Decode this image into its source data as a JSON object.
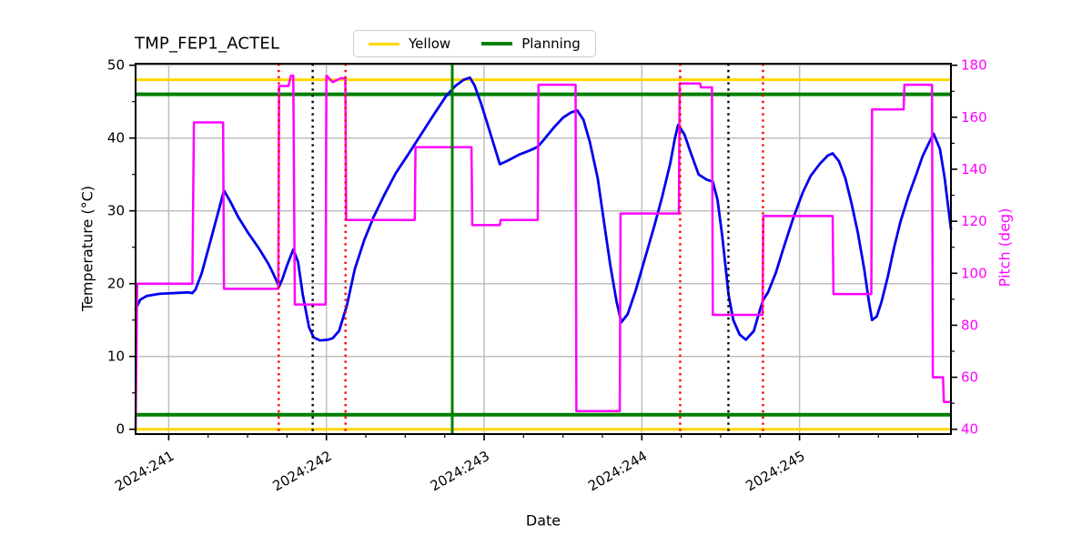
{
  "title": "TMP_FEP1_ACTEL",
  "legend": {
    "entries": [
      {
        "label": "Yellow",
        "color": "#FFD700"
      },
      {
        "label": "Planning",
        "color": "#008000"
      }
    ]
  },
  "chart_data": {
    "type": "line",
    "title": "TMP_FEP1_ACTEL",
    "xlabel": "Date",
    "ylabel_left": "Temperature (°C)",
    "ylabel_right": "Pitch (deg)",
    "right_axis_color": "#ff00ff",
    "grid": true,
    "xlim": [
      240.79,
      245.96
    ],
    "ylim_left": [
      -0.66,
      50.21
    ],
    "ylim_right": [
      38.15,
      180.59
    ],
    "x_ticks": [
      241,
      242,
      243,
      244,
      245
    ],
    "x_tick_labels": [
      "2024:241",
      "2024:242",
      "2024:243",
      "2024:244",
      "2024:245"
    ],
    "y_ticks_left": [
      0,
      10,
      20,
      30,
      40,
      50
    ],
    "y_ticks_right": [
      40,
      60,
      80,
      100,
      120,
      140,
      160,
      180
    ],
    "series": [
      {
        "name": "temperature",
        "axis": "left",
        "color": "#0000ee",
        "points": [
          [
            240.79,
            16.5
          ],
          [
            240.82,
            17.8
          ],
          [
            240.86,
            18.3
          ],
          [
            240.94,
            18.6
          ],
          [
            241.03,
            18.7
          ],
          [
            241.12,
            18.8
          ],
          [
            241.15,
            18.7
          ],
          [
            241.17,
            19.2
          ],
          [
            241.21,
            21.5
          ],
          [
            241.26,
            25.5
          ],
          [
            241.31,
            29.5
          ],
          [
            241.35,
            32.8
          ],
          [
            241.39,
            31.3
          ],
          [
            241.44,
            29.2
          ],
          [
            241.5,
            27.1
          ],
          [
            241.57,
            24.9
          ],
          [
            241.63,
            22.8
          ],
          [
            241.66,
            21.5
          ],
          [
            241.7,
            19.6
          ],
          [
            241.72,
            20.6
          ],
          [
            241.75,
            22.5
          ],
          [
            241.79,
            24.7
          ],
          [
            241.82,
            23.0
          ],
          [
            241.85,
            18.5
          ],
          [
            241.89,
            14.0
          ],
          [
            241.92,
            12.6
          ],
          [
            241.96,
            12.2
          ],
          [
            242.01,
            12.3
          ],
          [
            242.04,
            12.5
          ],
          [
            242.08,
            13.5
          ],
          [
            242.13,
            17.0
          ],
          [
            242.18,
            22.0
          ],
          [
            242.24,
            26.0
          ],
          [
            242.3,
            29.2
          ],
          [
            242.37,
            32.3
          ],
          [
            242.44,
            35.2
          ],
          [
            242.52,
            37.8
          ],
          [
            242.6,
            40.5
          ],
          [
            242.68,
            43.2
          ],
          [
            242.76,
            45.8
          ],
          [
            242.82,
            47.2
          ],
          [
            242.87,
            48.0
          ],
          [
            242.91,
            48.3
          ],
          [
            242.94,
            47.2
          ],
          [
            242.98,
            44.8
          ],
          [
            243.02,
            42.0
          ],
          [
            243.06,
            39.2
          ],
          [
            243.1,
            36.4
          ],
          [
            243.15,
            36.9
          ],
          [
            243.22,
            37.7
          ],
          [
            243.29,
            38.3
          ],
          [
            243.34,
            38.8
          ],
          [
            243.38,
            39.8
          ],
          [
            243.44,
            41.4
          ],
          [
            243.5,
            42.8
          ],
          [
            243.55,
            43.5
          ],
          [
            243.59,
            43.8
          ],
          [
            243.63,
            42.5
          ],
          [
            243.67,
            39.5
          ],
          [
            243.72,
            34.5
          ],
          [
            243.76,
            28.5
          ],
          [
            243.8,
            22.5
          ],
          [
            243.84,
            17.5
          ],
          [
            243.87,
            14.7
          ],
          [
            243.91,
            15.8
          ],
          [
            243.96,
            19.0
          ],
          [
            244.02,
            23.5
          ],
          [
            244.08,
            28.0
          ],
          [
            244.13,
            32.0
          ],
          [
            244.18,
            36.5
          ],
          [
            244.21,
            40.0
          ],
          [
            244.23,
            41.8
          ],
          [
            244.27,
            40.5
          ],
          [
            244.31,
            38.0
          ],
          [
            244.36,
            35.0
          ],
          [
            244.41,
            34.3
          ],
          [
            244.45,
            34.0
          ],
          [
            244.48,
            31.5
          ],
          [
            244.51,
            26.5
          ],
          [
            244.55,
            18.5
          ],
          [
            244.58,
            15.0
          ],
          [
            244.62,
            13.0
          ],
          [
            244.66,
            12.3
          ],
          [
            244.71,
            13.5
          ],
          [
            244.75,
            16.5
          ],
          [
            244.77,
            17.8
          ],
          [
            244.8,
            18.8
          ],
          [
            244.85,
            21.5
          ],
          [
            244.9,
            25.0
          ],
          [
            244.96,
            29.0
          ],
          [
            245.02,
            32.5
          ],
          [
            245.07,
            34.8
          ],
          [
            245.13,
            36.5
          ],
          [
            245.18,
            37.6
          ],
          [
            245.21,
            37.9
          ],
          [
            245.25,
            36.8
          ],
          [
            245.29,
            34.5
          ],
          [
            245.33,
            31.0
          ],
          [
            245.37,
            27.0
          ],
          [
            245.41,
            22.0
          ],
          [
            245.44,
            17.5
          ],
          [
            245.46,
            15.0
          ],
          [
            245.49,
            15.5
          ],
          [
            245.52,
            17.5
          ],
          [
            245.56,
            21.0
          ],
          [
            245.6,
            25.0
          ],
          [
            245.64,
            28.5
          ],
          [
            245.69,
            32.0
          ],
          [
            245.74,
            35.0
          ],
          [
            245.78,
            37.5
          ],
          [
            245.82,
            39.3
          ],
          [
            245.85,
            40.6
          ],
          [
            245.89,
            38.5
          ],
          [
            245.92,
            34.5
          ],
          [
            245.94,
            31.0
          ],
          [
            245.96,
            27.5
          ]
        ]
      },
      {
        "name": "pitch",
        "axis": "right",
        "color": "#ff00ff",
        "points": [
          [
            240.79,
            40
          ],
          [
            240.8,
            96
          ],
          [
            241.15,
            96
          ],
          [
            241.16,
            158
          ],
          [
            241.345,
            158
          ],
          [
            241.35,
            94
          ],
          [
            241.695,
            94
          ],
          [
            241.7,
            172
          ],
          [
            241.76,
            172
          ],
          [
            241.775,
            176
          ],
          [
            241.79,
            176
          ],
          [
            241.8,
            88
          ],
          [
            241.995,
            88
          ],
          [
            242.0,
            176
          ],
          [
            242.04,
            173.5
          ],
          [
            242.09,
            175
          ],
          [
            242.12,
            175
          ],
          [
            242.125,
            120.5
          ],
          [
            242.56,
            120.5
          ],
          [
            242.565,
            148.5
          ],
          [
            242.92,
            148.5
          ],
          [
            242.925,
            118.5
          ],
          [
            243.1,
            118.5
          ],
          [
            243.105,
            120.5
          ],
          [
            243.34,
            120.5
          ],
          [
            243.345,
            172.5
          ],
          [
            243.58,
            172.5
          ],
          [
            243.585,
            47
          ],
          [
            243.86,
            47
          ],
          [
            243.865,
            123
          ],
          [
            244.235,
            123
          ],
          [
            244.24,
            173
          ],
          [
            244.37,
            173
          ],
          [
            244.375,
            171.5
          ],
          [
            244.445,
            171.5
          ],
          [
            244.45,
            84
          ],
          [
            244.765,
            84
          ],
          [
            244.77,
            122
          ],
          [
            245.21,
            122
          ],
          [
            245.215,
            92
          ],
          [
            245.455,
            92
          ],
          [
            245.46,
            163
          ],
          [
            245.66,
            163
          ],
          [
            245.665,
            172.5
          ],
          [
            245.84,
            172.5
          ],
          [
            245.845,
            60
          ],
          [
            245.91,
            60
          ],
          [
            245.915,
            50.5
          ],
          [
            245.96,
            50.5
          ]
        ]
      }
    ],
    "reference_lines": {
      "horizontal": [
        {
          "name": "yellow-high",
          "color": "#FFD700",
          "axis": "left",
          "y": 48
        },
        {
          "name": "yellow-low",
          "color": "#FFD700",
          "axis": "left",
          "y": 0
        },
        {
          "name": "planning-high",
          "color": "#008000",
          "axis": "left",
          "y": 46
        },
        {
          "name": "planning-low",
          "color": "#008000",
          "axis": "left",
          "y": 2
        }
      ],
      "vertical": [
        {
          "t": 241.698,
          "color": "#ff0000",
          "style": "dotted"
        },
        {
          "t": 241.913,
          "color": "#000000",
          "style": "dotted"
        },
        {
          "t": 242.121,
          "color": "#ff0000",
          "style": "dotted"
        },
        {
          "t": 242.798,
          "color": "#008000",
          "style": "solid"
        },
        {
          "t": 244.243,
          "color": "#ff0000",
          "style": "dotted"
        },
        {
          "t": 244.549,
          "color": "#000000",
          "style": "dotted"
        },
        {
          "t": 244.768,
          "color": "#ff0000",
          "style": "dotted"
        }
      ]
    }
  }
}
